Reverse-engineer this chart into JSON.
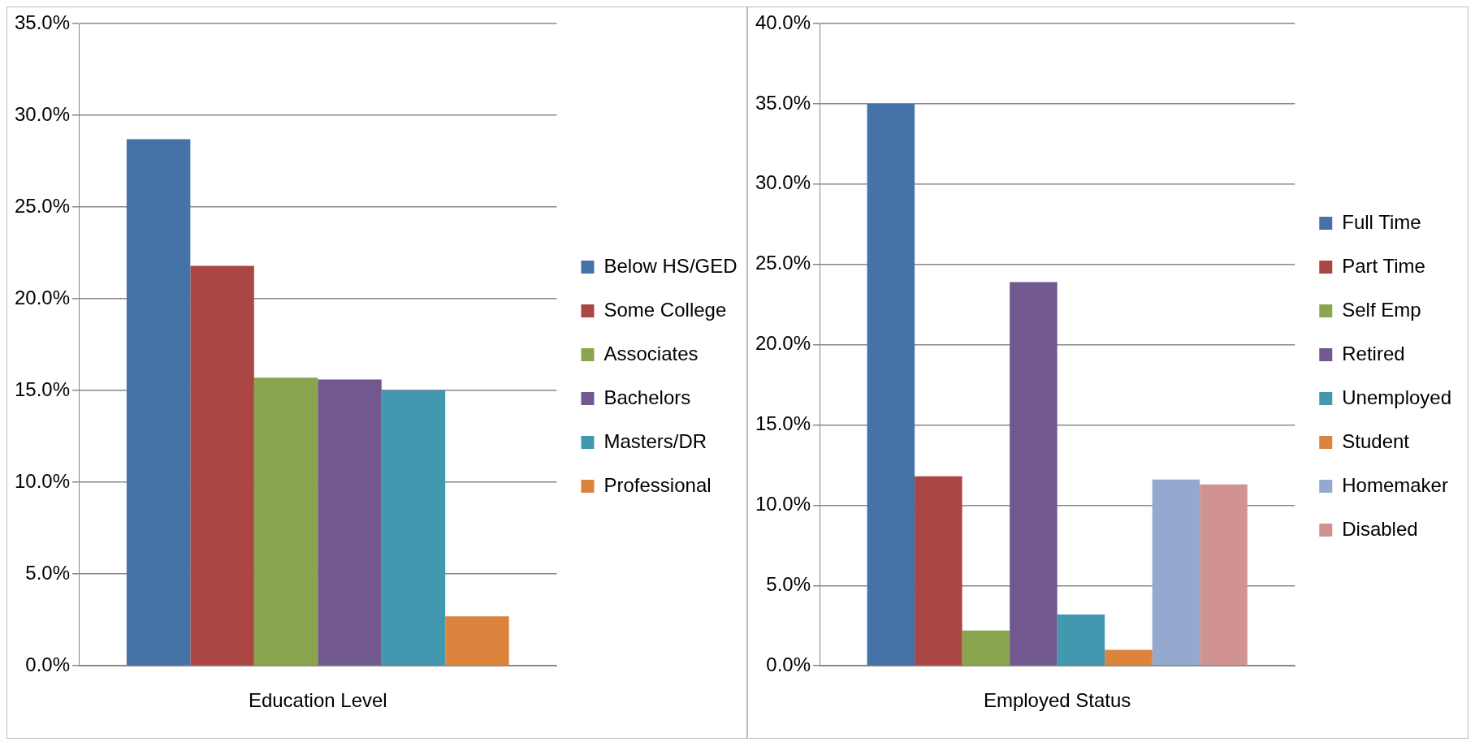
{
  "chart_data": [
    {
      "type": "bar",
      "categories": [
        "Education Level"
      ],
      "ylim": [
        0,
        35
      ],
      "yticks": [
        {
          "value": 0,
          "label": "0.0%"
        },
        {
          "value": 5,
          "label": "5.0%"
        },
        {
          "value": 10,
          "label": "10.0%"
        },
        {
          "value": 15,
          "label": "15.0%"
        },
        {
          "value": 20,
          "label": "20.0%"
        },
        {
          "value": 25,
          "label": "25.0%"
        },
        {
          "value": 30,
          "label": "30.0%"
        },
        {
          "value": 35,
          "label": "35.0%"
        }
      ],
      "grid": "y",
      "legend": "right",
      "series": [
        {
          "name": "Below HS/GED",
          "color": "#4572a7",
          "values": [
            28.7
          ]
        },
        {
          "name": "Some College",
          "color": "#aa4643",
          "values": [
            21.8
          ]
        },
        {
          "name": "Associates",
          "color": "#89a54e",
          "values": [
            15.7
          ]
        },
        {
          "name": "Bachelors",
          "color": "#71588f",
          "values": [
            15.6
          ]
        },
        {
          "name": "Masters/DR",
          "color": "#4198af",
          "values": [
            15.0
          ]
        },
        {
          "name": "Professional",
          "color": "#db843d",
          "values": [
            2.7
          ]
        }
      ]
    },
    {
      "type": "bar",
      "categories": [
        "Employed Status"
      ],
      "ylim": [
        0,
        40
      ],
      "yticks": [
        {
          "value": 0,
          "label": "0.0%"
        },
        {
          "value": 5,
          "label": "5.0%"
        },
        {
          "value": 10,
          "label": "10.0%"
        },
        {
          "value": 15,
          "label": "15.0%"
        },
        {
          "value": 20,
          "label": "20.0%"
        },
        {
          "value": 25,
          "label": "25.0%"
        },
        {
          "value": 30,
          "label": "30.0%"
        },
        {
          "value": 35,
          "label": "35.0%"
        },
        {
          "value": 40,
          "label": "40.0%"
        }
      ],
      "grid": "y",
      "legend": "right",
      "series": [
        {
          "name": "Full Time",
          "color": "#4572a7",
          "values": [
            35.0
          ]
        },
        {
          "name": "Part Time",
          "color": "#aa4643",
          "values": [
            11.8
          ]
        },
        {
          "name": "Self Emp",
          "color": "#89a54e",
          "values": [
            2.2
          ]
        },
        {
          "name": "Retired",
          "color": "#71588f",
          "values": [
            23.9
          ]
        },
        {
          "name": "Unemployed",
          "color": "#4198af",
          "values": [
            3.2
          ]
        },
        {
          "name": "Student",
          "color": "#db843d",
          "values": [
            1.0
          ]
        },
        {
          "name": "Homemaker",
          "color": "#93a9cf",
          "values": [
            11.6
          ]
        },
        {
          "name": "Disabled",
          "color": "#d19392",
          "values": [
            11.3
          ]
        }
      ]
    }
  ]
}
